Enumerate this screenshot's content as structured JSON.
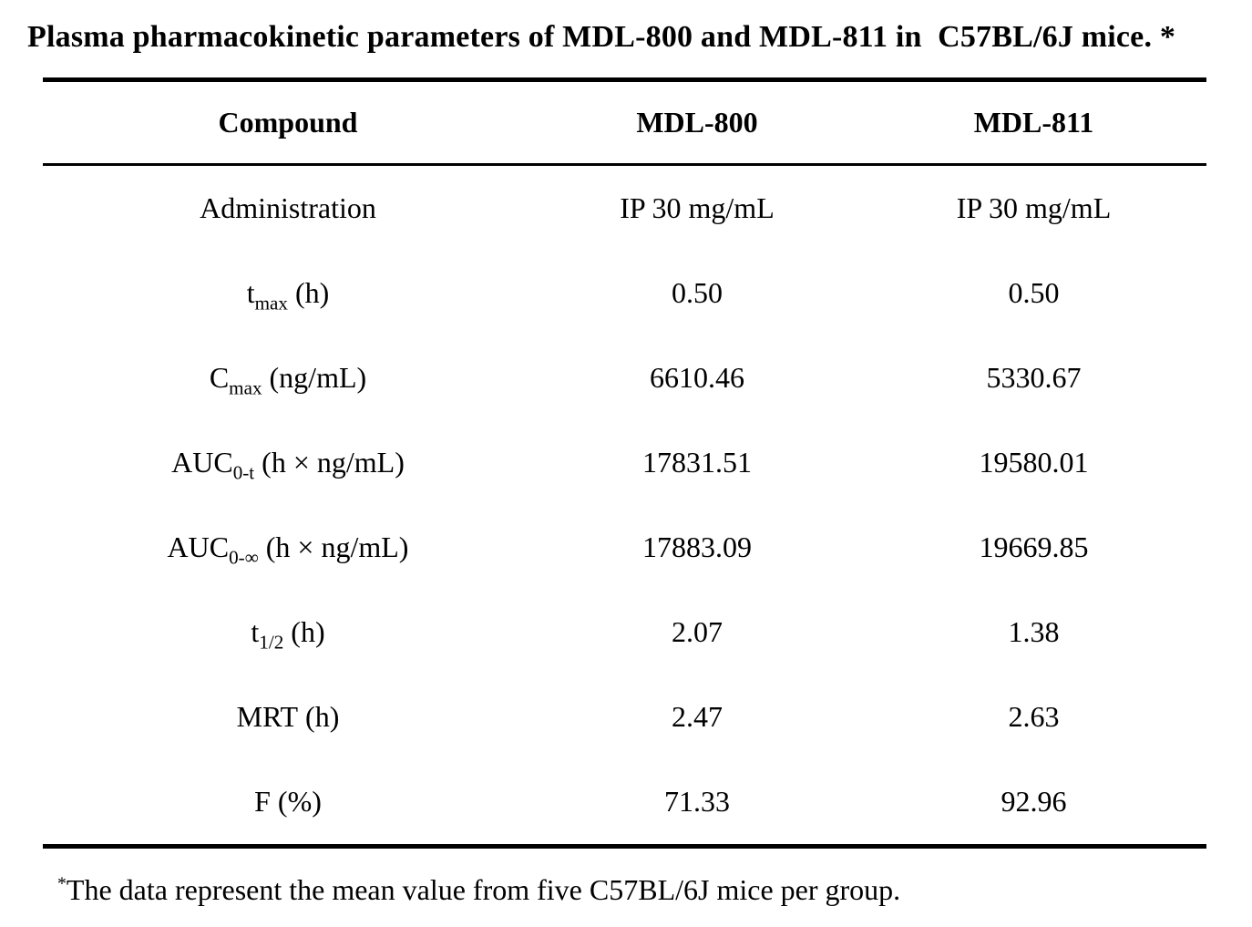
{
  "title": "Plasma pharmacokinetic parameters of MDL-800 and MDL-811 in  C57BL/6J mice. *",
  "table": {
    "headers": [
      "Compound",
      "MDL-800",
      "MDL-811"
    ],
    "rows": [
      {
        "label": {
          "pre": "Administration",
          "sub": "",
          "post": ""
        },
        "mdl800": "IP 30 mg/mL",
        "mdl811": "IP 30 mg/mL"
      },
      {
        "label": {
          "pre": "t",
          "sub": "max",
          "post": " (h)"
        },
        "mdl800": "0.50",
        "mdl811": "0.50"
      },
      {
        "label": {
          "pre": "C",
          "sub": "max",
          "post": " (ng/mL)"
        },
        "mdl800": "6610.46",
        "mdl811": "5330.67"
      },
      {
        "label": {
          "pre": "AUC",
          "sub": "0-t",
          "post": " (h × ng/mL)"
        },
        "mdl800": "17831.51",
        "mdl811": "19580.01"
      },
      {
        "label": {
          "pre": "AUC",
          "sub": "0-∞",
          "post": " (h × ng/mL)"
        },
        "mdl800": "17883.09",
        "mdl811": "19669.85"
      },
      {
        "label": {
          "pre": "t",
          "sub": "1/2",
          "post": " (h)"
        },
        "mdl800": "2.07",
        "mdl811": "1.38"
      },
      {
        "label": {
          "pre": "MRT",
          "sub": "",
          "post": " (h)"
        },
        "mdl800": "2.47",
        "mdl811": "2.63"
      },
      {
        "label": {
          "pre": "F",
          "sub": "",
          "post": " (%)"
        },
        "mdl800": "71.33",
        "mdl811": "92.96"
      }
    ]
  },
  "footnote": {
    "marker": "*",
    "text": "The data represent the mean value from five C57BL/6J mice per group."
  },
  "colors": {
    "text": "#000000",
    "background": "#ffffff",
    "rule": "#000000"
  }
}
